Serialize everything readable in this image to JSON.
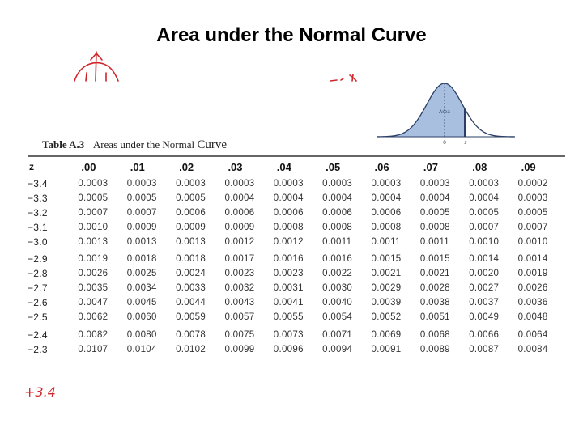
{
  "page": {
    "title": "Area under the Normal Curve"
  },
  "figure": {
    "area_label": "Area",
    "axis_zero": "0",
    "axis_z": "z"
  },
  "annotation": {
    "bottom_left": "+3.4"
  },
  "table": {
    "caption_label": "Table A.3",
    "caption_text": "Areas under the Normal",
    "caption_word": "Curve",
    "columns": [
      "z",
      ".00",
      ".01",
      ".02",
      ".03",
      ".04",
      ".05",
      ".06",
      ".07",
      ".08",
      ".09"
    ],
    "rows": [
      {
        "z": "−3.4",
        "values": [
          "0.0003",
          "0.0003",
          "0.0003",
          "0.0003",
          "0.0003",
          "0.0003",
          "0.0003",
          "0.0003",
          "0.0003",
          "0.0002"
        ]
      },
      {
        "z": "−3.3",
        "values": [
          "0.0005",
          "0.0005",
          "0.0005",
          "0.0004",
          "0.0004",
          "0.0004",
          "0.0004",
          "0.0004",
          "0.0004",
          "0.0003"
        ]
      },
      {
        "z": "−3.2",
        "values": [
          "0.0007",
          "0.0007",
          "0.0006",
          "0.0006",
          "0.0006",
          "0.0006",
          "0.0006",
          "0.0005",
          "0.0005",
          "0.0005"
        ]
      },
      {
        "z": "−3.1",
        "values": [
          "0.0010",
          "0.0009",
          "0.0009",
          "0.0009",
          "0.0008",
          "0.0008",
          "0.0008",
          "0.0008",
          "0.0007",
          "0.0007"
        ]
      },
      {
        "z": "−3.0",
        "values": [
          "0.0013",
          "0.0013",
          "0.0013",
          "0.0012",
          "0.0012",
          "0.0011",
          "0.0011",
          "0.0011",
          "0.0010",
          "0.0010"
        ]
      },
      {
        "z": "−2.9",
        "values": [
          "0.0019",
          "0.0018",
          "0.0018",
          "0.0017",
          "0.0016",
          "0.0016",
          "0.0015",
          "0.0015",
          "0.0014",
          "0.0014"
        ]
      },
      {
        "z": "−2.8",
        "values": [
          "0.0026",
          "0.0025",
          "0.0024",
          "0.0023",
          "0.0023",
          "0.0022",
          "0.0021",
          "0.0021",
          "0.0020",
          "0.0019"
        ]
      },
      {
        "z": "−2.7",
        "values": [
          "0.0035",
          "0.0034",
          "0.0033",
          "0.0032",
          "0.0031",
          "0.0030",
          "0.0029",
          "0.0028",
          "0.0027",
          "0.0026"
        ]
      },
      {
        "z": "−2.6",
        "values": [
          "0.0047",
          "0.0045",
          "0.0044",
          "0.0043",
          "0.0041",
          "0.0040",
          "0.0039",
          "0.0038",
          "0.0037",
          "0.0036"
        ]
      },
      {
        "z": "−2.5",
        "values": [
          "0.0062",
          "0.0060",
          "0.0059",
          "0.0057",
          "0.0055",
          "0.0054",
          "0.0052",
          "0.0051",
          "0.0049",
          "0.0048"
        ]
      },
      {
        "z": "−2.4",
        "values": [
          "0.0082",
          "0.0080",
          "0.0078",
          "0.0075",
          "0.0073",
          "0.0071",
          "0.0069",
          "0.0068",
          "0.0066",
          "0.0064"
        ]
      },
      {
        "z": "−2.3",
        "values": [
          "0.0107",
          "0.0104",
          "0.0102",
          "0.0099",
          "0.0096",
          "0.0094",
          "0.0091",
          "0.0089",
          "0.0087",
          "0.0084"
        ]
      }
    ]
  },
  "colors": {
    "ink": "#d0262a",
    "curve_fill": "#a9bfe0",
    "curve_stroke": "#2b3f66"
  }
}
